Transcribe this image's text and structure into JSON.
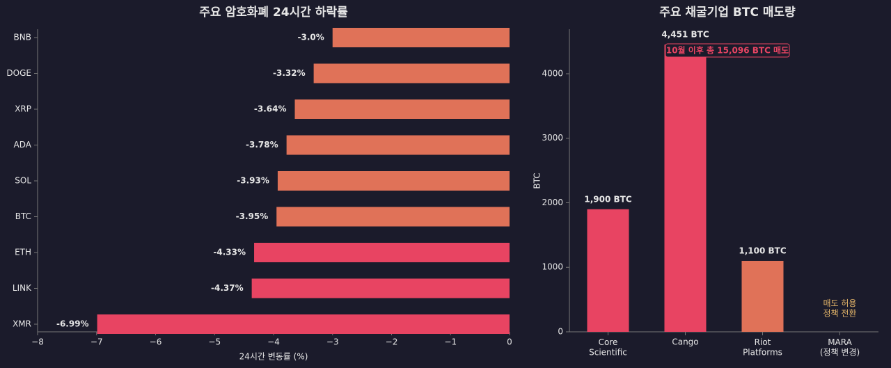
{
  "chart_data": [
    {
      "type": "barh",
      "title": "주요 암호화폐 24시간 하락률",
      "xlabel": "24시간 변동률 (%)",
      "categories": [
        "BNB",
        "DOGE",
        "XRP",
        "ADA",
        "SOL",
        "BTC",
        "ETH",
        "LINK",
        "XMR"
      ],
      "values": [
        -3.0,
        -3.32,
        -3.64,
        -3.78,
        -3.93,
        -3.95,
        -4.33,
        -4.37,
        -6.99
      ],
      "value_labels": [
        "-3.0%",
        "-3.32%",
        "-3.64%",
        "-3.78%",
        "-3.93%",
        "-3.95%",
        "-4.33%",
        "-4.37%",
        "-6.99%"
      ],
      "colors": [
        "#e07258",
        "#e07258",
        "#e07258",
        "#e07258",
        "#e07258",
        "#e07258",
        "#e84462",
        "#e84462",
        "#e84462"
      ],
      "xlim": [
        -8,
        0
      ],
      "xticks": [
        {
          "value": -8,
          "label": "−8"
        },
        {
          "value": -7,
          "label": "−7"
        },
        {
          "value": -6,
          "label": "−6"
        },
        {
          "value": -5,
          "label": "−5"
        },
        {
          "value": -4,
          "label": "−4"
        },
        {
          "value": -3,
          "label": "−3"
        },
        {
          "value": -2,
          "label": "−2"
        },
        {
          "value": -1,
          "label": "−1"
        },
        0
      ]
    },
    {
      "type": "bar",
      "title": "주요 채굴기업 BTC 매도량",
      "ylabel": "BTC",
      "categories": [
        "Core\nScientific",
        "Cango",
        "Riot\nPlatforms",
        "MARA\n(정책 변경)"
      ],
      "values": [
        1900,
        4451,
        1100,
        null
      ],
      "value_labels": [
        "1,900 BTC",
        "4,451 BTC",
        "1,100 BTC",
        null
      ],
      "colors": [
        "#e84462",
        "#e84462",
        "#e07258",
        null
      ],
      "ylim": [
        0,
        4690
      ],
      "yticks": [
        0,
        1000,
        2000,
        3000,
        4000
      ],
      "annotations": [
        "10월 이후 총 15,096 BTC 매도",
        "매도 허용\n정책 전환"
      ]
    }
  ]
}
